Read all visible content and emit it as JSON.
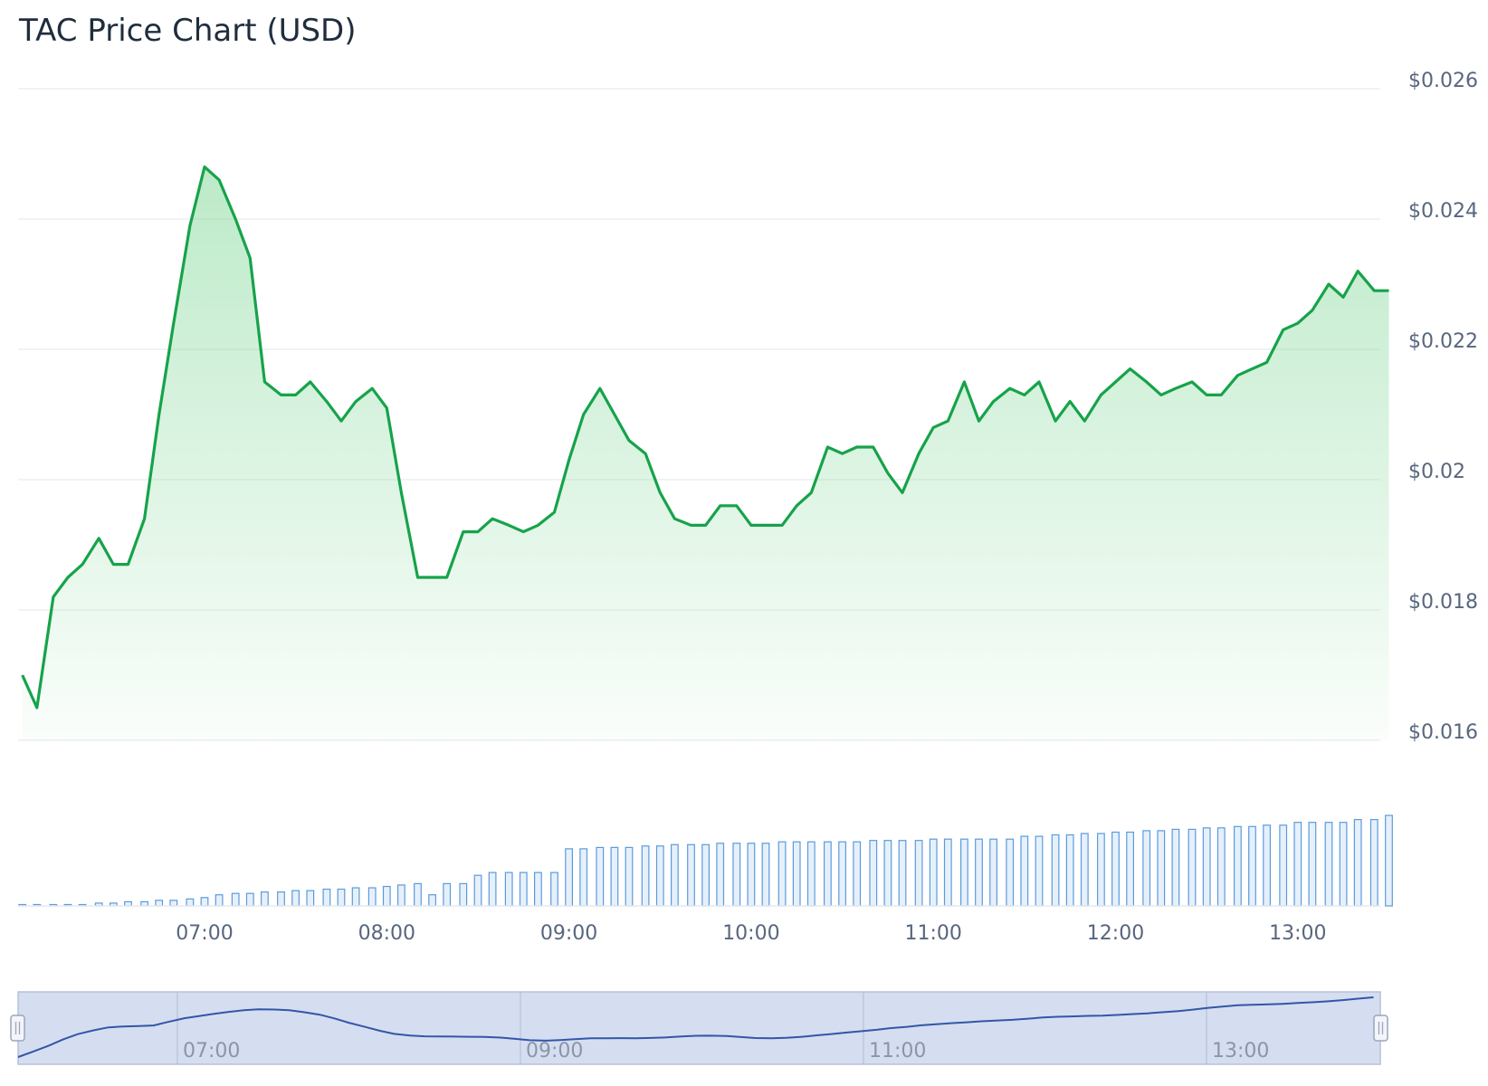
{
  "chart_data": {
    "type": "line",
    "title": "TAC Price Chart (USD)",
    "ylim": [
      0.016,
      0.026
    ],
    "y_ticks": [
      "$0.026",
      "$0.024",
      "$0.022",
      "$0.02",
      "$0.018",
      "$0.016"
    ],
    "x_ticks": [
      "07:00",
      "08:00",
      "09:00",
      "10:00",
      "11:00",
      "12:00",
      "13:00"
    ],
    "navigator_ticks": [
      "07:00",
      "09:00",
      "11:00",
      "13:00"
    ],
    "colors": {
      "line": "#16a34a",
      "area": "#86d99b",
      "volume": "#5b9bdc",
      "navigator_line": "#3356a8",
      "navigator_bg": "#d5def0"
    },
    "series": [
      {
        "time_hours": [
          6.0,
          6.08,
          6.17,
          6.25,
          6.33,
          6.42,
          6.5,
          6.58,
          6.67,
          6.75,
          6.83,
          6.92,
          7.0,
          7.08,
          7.17,
          7.25,
          7.33,
          7.42,
          7.5,
          7.58,
          7.67,
          7.75,
          7.83,
          7.92,
          8.0,
          8.08,
          8.17,
          8.25,
          8.33,
          8.42,
          8.5,
          8.58,
          8.67,
          8.75,
          8.83,
          8.92,
          9.0,
          9.08,
          9.17,
          9.25,
          9.33,
          9.42,
          9.5,
          9.58,
          9.67,
          9.75,
          9.83,
          9.92,
          10.0,
          10.08,
          10.17,
          10.25,
          10.33,
          10.42,
          10.5,
          10.58,
          10.67,
          10.75,
          10.83,
          10.92,
          11.0,
          11.08,
          11.17,
          11.25,
          11.33,
          11.42,
          11.5,
          11.58,
          11.67,
          11.75,
          11.83,
          11.92,
          12.0,
          12.08,
          12.17,
          12.25,
          12.33,
          12.42,
          12.5,
          12.58,
          12.67,
          12.75,
          12.83,
          12.92,
          13.0,
          13.08,
          13.17,
          13.25,
          13.33,
          13.42,
          13.5
        ],
        "values": [
          0.017,
          0.0165,
          0.0182,
          0.0185,
          0.0187,
          0.0191,
          0.0187,
          0.0187,
          0.0194,
          0.021,
          0.0224,
          0.0239,
          0.0248,
          0.0246,
          0.024,
          0.0234,
          0.0215,
          0.0213,
          0.0213,
          0.0215,
          0.0212,
          0.0209,
          0.0212,
          0.0214,
          0.0211,
          0.0198,
          0.0185,
          0.0185,
          0.0185,
          0.0192,
          0.0192,
          0.0194,
          0.0193,
          0.0192,
          0.0193,
          0.0195,
          0.0203,
          0.021,
          0.0214,
          0.021,
          0.0206,
          0.0204,
          0.0198,
          0.0194,
          0.0193,
          0.0193,
          0.0196,
          0.0196,
          0.0193,
          0.0193,
          0.0193,
          0.0196,
          0.0198,
          0.0205,
          0.0204,
          0.0205,
          0.0205,
          0.0201,
          0.0198,
          0.0204,
          0.0208,
          0.0209,
          0.0215,
          0.0209,
          0.0212,
          0.0214,
          0.0213,
          0.0215,
          0.0209,
          0.0212,
          0.0209,
          0.0213,
          0.0215,
          0.0217,
          0.0215,
          0.0213,
          0.0214,
          0.0215,
          0.0213,
          0.0213,
          0.0216,
          0.0217,
          0.0218,
          0.0223,
          0.0224,
          0.0226,
          0.023,
          0.0228,
          0.0232,
          0.0229,
          0.0229
        ],
        "volume": [
          1,
          1,
          1,
          1,
          1,
          2,
          2,
          3,
          3,
          4,
          4,
          5,
          6,
          8,
          9,
          9,
          10,
          10,
          11,
          11,
          12,
          12,
          13,
          13,
          14,
          15,
          16,
          8,
          16,
          16,
          22,
          24,
          24,
          24,
          24,
          24,
          41,
          41,
          42,
          42,
          42,
          43,
          43,
          44,
          44,
          44,
          45,
          45,
          45,
          45,
          46,
          46,
          46,
          46,
          46,
          46,
          47,
          47,
          47,
          47,
          48,
          48,
          48,
          48,
          48,
          48,
          50,
          50,
          51,
          51,
          52,
          52,
          53,
          53,
          54,
          54,
          55,
          55,
          56,
          56,
          57,
          57,
          58,
          58,
          60,
          60,
          60,
          60,
          62,
          62,
          65
        ]
      }
    ]
  }
}
